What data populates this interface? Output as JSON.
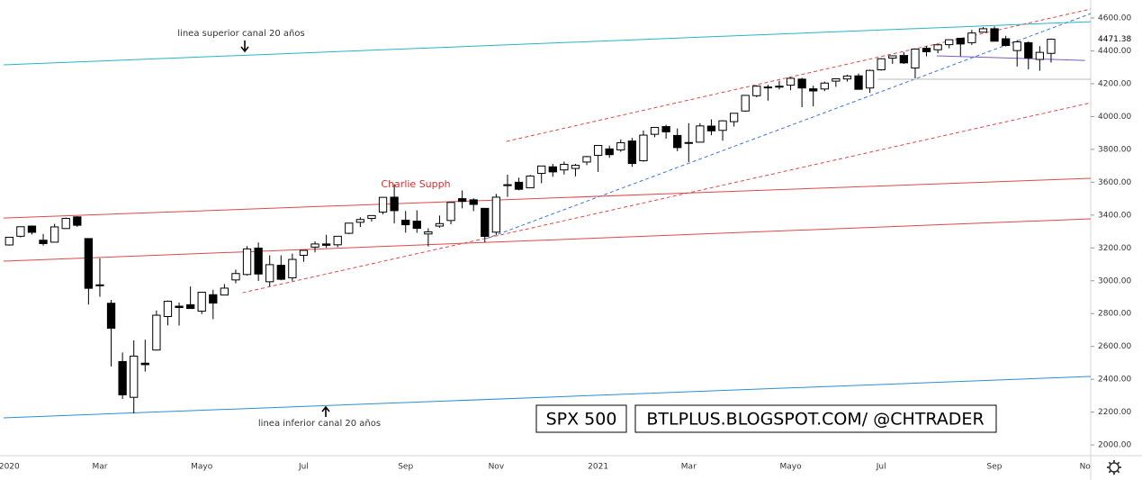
{
  "chart_data": {
    "type": "candlestick",
    "title": "SPX 500",
    "source": "BTLPLUS.BLOGSPOT.COM/ @CHTRADER",
    "annotations": [
      "linea superior canal 20 años",
      "linea inferior canal 20 años",
      "Charlie Supph"
    ],
    "categories": [
      "2020",
      null,
      null,
      null,
      null,
      null,
      null,
      null,
      "Mar",
      null,
      null,
      null,
      null,
      null,
      null,
      null,
      null,
      "Mayo",
      null,
      null,
      null,
      null,
      null,
      null,
      null,
      null,
      "Jul",
      null,
      null,
      null,
      null,
      null,
      null,
      null,
      null,
      "Sep",
      null,
      null,
      null,
      null,
      null,
      null,
      null,
      "Nov",
      null,
      null,
      null,
      null,
      null,
      null,
      null,
      null,
      "2021",
      null,
      null,
      null,
      null,
      null,
      null,
      null,
      "Mar",
      null,
      null,
      null,
      null,
      null,
      null,
      null,
      null,
      "Mayo",
      null,
      null,
      null,
      null,
      null,
      null,
      null,
      "Jul",
      null,
      null,
      null,
      null,
      null,
      null,
      null,
      null,
      null,
      "Sep",
      null,
      null,
      null,
      null,
      null,
      null,
      null,
      "No"
    ],
    "open": [
      3218,
      3271,
      3333,
      3247,
      3235,
      3318,
      3389,
      3257,
      2975,
      2863,
      2508,
      2290,
      2498,
      2578,
      2782,
      2845,
      2854,
      2815,
      2915,
      2913,
      3005,
      3038,
      3199,
      2994,
      3094,
      3018,
      3155,
      3205,
      3224,
      3219,
      3289,
      3356,
      3380,
      3418,
      3509,
      3369,
      3363,
      3285,
      3333,
      3367,
      3500,
      3493,
      3441,
      3296,
      3583,
      3600,
      3566,
      3654,
      3694,
      3675,
      3684,
      3723,
      3764,
      3803,
      3797,
      3851,
      3731,
      3892,
      3939,
      3885,
      3842,
      3844,
      3942,
      3916,
      3969,
      4034,
      4127,
      4180,
      4185,
      4191,
      4228,
      4169,
      4168,
      4216,
      4229,
      4248,
      4174,
      4285,
      4356,
      4372,
      4296,
      4416,
      4407,
      4438,
      4477,
      4450,
      4514,
      4535,
      4474,
      4402,
      4450,
      4348,
      4385,
      null,
      null,
      null
    ],
    "high": [
      3267,
      3329,
      3337,
      3285,
      3347,
      3385,
      3393,
      3259,
      3137,
      2883,
      2563,
      2637,
      2641,
      2819,
      2880,
      2867,
      2965,
      2931,
      2945,
      2980,
      3068,
      3211,
      3233,
      3155,
      3155,
      3165,
      3185,
      3240,
      3280,
      3272,
      3352,
      3387,
      3399,
      3509,
      3588,
      3425,
      3429,
      3320,
      3397,
      3479,
      3550,
      3502,
      3441,
      3529,
      3646,
      3628,
      3644,
      3699,
      3712,
      3726,
      3712,
      3760,
      3826,
      3823,
      3861,
      3870,
      3915,
      3934,
      3950,
      3928,
      3960,
      3960,
      3983,
      3978,
      4020,
      4130,
      4191,
      4194,
      4218,
      4238,
      4236,
      4188,
      4213,
      4233,
      4255,
      4262,
      4286,
      4356,
      4372,
      4393,
      4415,
      4429,
      4440,
      4468,
      4480,
      4528,
      4545,
      4549,
      4492,
      4465,
      4457,
      4429,
      4475,
      null,
      null,
      null
    ],
    "low": [
      3214,
      3264,
      3281,
      3214,
      3235,
      3316,
      3328,
      2855,
      2902,
      2478,
      2280,
      2192,
      2447,
      2575,
      2728,
      2727,
      2831,
      2797,
      2766,
      2913,
      2985,
      3032,
      2999,
      2965,
      3003,
      2999,
      3115,
      3173,
      3200,
      3204,
      3284,
      3327,
      3361,
      3404,
      3349,
      3293,
      3292,
      3209,
      3323,
      3344,
      3441,
      3424,
      3234,
      3279,
      3511,
      3551,
      3566,
      3594,
      3633,
      3647,
      3636,
      3704,
      3663,
      3749,
      3785,
      3694,
      3725,
      3874,
      3865,
      3789,
      3723,
      3841,
      3886,
      3853,
      3939,
      4029,
      4118,
      4097,
      4165,
      4160,
      4057,
      4062,
      4155,
      4181,
      4213,
      4165,
      4144,
      4280,
      4321,
      4321,
      4233,
      4367,
      4385,
      4416,
      4368,
      4436,
      4513,
      4458,
      4427,
      4305,
      4288,
      4279,
      4329,
      null,
      null,
      null
    ],
    "close": [
      3265,
      3329,
      3295,
      3226,
      3328,
      3380,
      3338,
      2954,
      2972,
      2711,
      2305,
      2541,
      2489,
      2790,
      2875,
      2837,
      2831,
      2930,
      2864,
      2955,
      3044,
      3194,
      3041,
      3098,
      3009,
      3130,
      3185,
      3224,
      3216,
      3271,
      3351,
      3373,
      3397,
      3508,
      3427,
      3341,
      3319,
      3298,
      3348,
      3477,
      3483,
      3465,
      3270,
      3509,
      3585,
      3557,
      3638,
      3699,
      3663,
      3709,
      3703,
      3756,
      3824,
      3768,
      3841,
      3714,
      3887,
      3934,
      3907,
      3811,
      3842,
      3943,
      3913,
      3974,
      4020,
      4129,
      4185,
      4180,
      4181,
      4233,
      4174,
      4156,
      4204,
      4230,
      4247,
      4166,
      4281,
      4352,
      4370,
      4327,
      4411,
      4395,
      4437,
      4468,
      4442,
      4509,
      4535,
      4459,
      4433,
      4455,
      4357,
      4391,
      4471,
      null,
      null,
      null
    ],
    "last_price": 4471.38,
    "ylim": [
      1940,
      4710
    ],
    "yticks": [
      {
        "value": 2000,
        "label": "2000.00"
      },
      {
        "value": 2200,
        "label": "2200.00"
      },
      {
        "value": 2400,
        "label": "2400.00"
      },
      {
        "value": 2600,
        "label": "2600.00"
      },
      {
        "value": 2800,
        "label": "2800.00"
      },
      {
        "value": 3000,
        "label": "3000.00"
      },
      {
        "value": 3200,
        "label": "3200.00"
      },
      {
        "value": 3400,
        "label": "3400.00"
      },
      {
        "value": 3600,
        "label": "3600.00"
      },
      {
        "value": 3800,
        "label": "3800.00"
      },
      {
        "value": 4000,
        "label": "4000.00"
      },
      {
        "value": 4200,
        "label": "4200.00"
      },
      {
        "value": 4400,
        "label": "4400.00"
      },
      {
        "value": 4600,
        "label": "4600.00"
      }
    ],
    "up_color": "#ffffff",
    "down_color": "#000000",
    "trendlines": [
      {
        "color": "#26b6c6",
        "dash": false,
        "x": [
          -0.5,
          95.5
        ],
        "y": [
          4315,
          4578
        ]
      },
      {
        "color": "#2a8fd6",
        "dash": false,
        "x": [
          -0.5,
          95.5
        ],
        "y": [
          2165,
          2417
        ]
      },
      {
        "color": "#e04848",
        "dash": false,
        "x": [
          -0.5,
          95.5
        ],
        "y": [
          3382,
          3624
        ]
      },
      {
        "color": "#e04848",
        "dash": false,
        "x": [
          -0.5,
          95.5
        ],
        "y": [
          3119,
          3377
        ]
      },
      {
        "color": "#e04848",
        "dash": true,
        "x": [
          43.9,
          95.5
        ],
        "y": [
          3849,
          4655
        ]
      },
      {
        "color": "#e04848",
        "dash": true,
        "x": [
          20.6,
          95.5
        ],
        "y": [
          2927,
          4084
        ]
      },
      {
        "color": "#3a78d8",
        "dash": true,
        "x": [
          42.1,
          95.5
        ],
        "y": [
          3256,
          4627
        ]
      },
      {
        "color": "#7b5cc9",
        "dash": false,
        "x": [
          81.9,
          95.0
        ],
        "y": [
          4370,
          4342
        ]
      },
      {
        "color": "#b8b8b8",
        "dash": false,
        "x": [
          76.7,
          95.5
        ],
        "y": [
          4227,
          4227
        ]
      }
    ]
  }
}
